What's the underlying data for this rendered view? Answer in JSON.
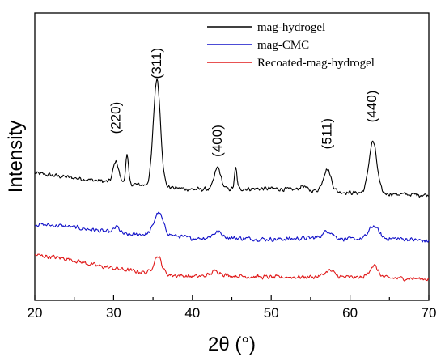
{
  "chart_data": {
    "type": "line",
    "xlabel": "2θ (°)",
    "ylabel": "Intensity",
    "xlim": [
      20,
      70
    ],
    "ylim": [
      0,
      100
    ],
    "xticks": [
      20,
      30,
      40,
      50,
      60,
      70
    ],
    "x_minor_step": 5,
    "y_ticks_shown": false,
    "grid": false,
    "legend": "top-right",
    "series": [
      {
        "name": "mag-hydrogel",
        "color": "#000000",
        "baseline": [
          [
            20,
            44.2
          ],
          [
            30,
            41.0
          ],
          [
            40,
            38.6
          ],
          [
            50,
            38.9
          ],
          [
            60,
            37.5
          ],
          [
            70,
            36.6
          ]
        ],
        "peaks": [
          {
            "x": 30.3,
            "height": 7.5,
            "width": 0.35
          },
          {
            "x": 31.7,
            "height": 9.7,
            "width": 0.18
          },
          {
            "x": 35.5,
            "height": 37.3,
            "width": 0.45
          },
          {
            "x": 43.2,
            "height": 7.5,
            "width": 0.4
          },
          {
            "x": 45.5,
            "height": 7.1,
            "width": 0.16
          },
          {
            "x": 54.0,
            "height": 1.5,
            "width": 0.4
          },
          {
            "x": 57.1,
            "height": 7.7,
            "width": 0.5
          },
          {
            "x": 62.9,
            "height": 18.0,
            "width": 0.5
          }
        ],
        "noise": 0.9
      },
      {
        "name": "mag-CMC",
        "color": "#1010c8",
        "baseline": [
          [
            20,
            26.5
          ],
          [
            24,
            25.8
          ],
          [
            28,
            24.3
          ],
          [
            32,
            22.8
          ],
          [
            36,
            23.2
          ],
          [
            40,
            21.6
          ],
          [
            44,
            21.8
          ],
          [
            50,
            21.2
          ],
          [
            56,
            21.8
          ],
          [
            60,
            21.3
          ],
          [
            66,
            21.5
          ],
          [
            70,
            20.6
          ]
        ],
        "peaks": [
          {
            "x": 30.4,
            "height": 2.2,
            "width": 0.35
          },
          {
            "x": 35.7,
            "height": 7.3,
            "width": 0.55
          },
          {
            "x": 43.2,
            "height": 2.0,
            "width": 0.6
          },
          {
            "x": 57.2,
            "height": 2.5,
            "width": 0.6
          },
          {
            "x": 63.0,
            "height": 4.5,
            "width": 0.6
          }
        ],
        "noise": 0.9
      },
      {
        "name": "Recoated-mag-hydrogel",
        "color": "#e01818",
        "baseline": [
          [
            20,
            15.8
          ],
          [
            24,
            14.5
          ],
          [
            28,
            12.0
          ],
          [
            32,
            10.4
          ],
          [
            36,
            9.0
          ],
          [
            40,
            8.3
          ],
          [
            44,
            8.6
          ],
          [
            50,
            8.0
          ],
          [
            56,
            8.2
          ],
          [
            60,
            8.0
          ],
          [
            66,
            7.7
          ],
          [
            70,
            7.4
          ]
        ],
        "peaks": [
          {
            "x": 35.6,
            "height": 6.2,
            "width": 0.5
          },
          {
            "x": 43.0,
            "height": 1.7,
            "width": 0.6
          },
          {
            "x": 57.4,
            "height": 2.2,
            "width": 0.6
          },
          {
            "x": 63.0,
            "height": 4.2,
            "width": 0.55
          }
        ],
        "noise": 0.9
      }
    ],
    "annotations": [
      {
        "text": "(220)",
        "x": 30.3,
        "y": 63.5
      },
      {
        "text": "(311)",
        "x": 35.5,
        "y": 82.5
      },
      {
        "text": "(400)",
        "x": 43.2,
        "y": 55.5
      },
      {
        "text": "(511)",
        "x": 57.1,
        "y": 58.0
      },
      {
        "text": "(440)",
        "x": 62.8,
        "y": 67.5
      }
    ]
  }
}
